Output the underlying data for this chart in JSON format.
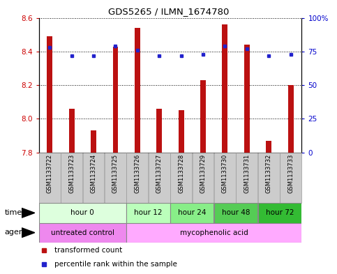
{
  "title": "GDS5265 / ILMN_1674780",
  "samples": [
    "GSM1133722",
    "GSM1133723",
    "GSM1133724",
    "GSM1133725",
    "GSM1133726",
    "GSM1133727",
    "GSM1133728",
    "GSM1133729",
    "GSM1133730",
    "GSM1133731",
    "GSM1133732",
    "GSM1133733"
  ],
  "bar_values": [
    8.49,
    8.06,
    7.93,
    8.43,
    8.54,
    8.06,
    8.05,
    8.23,
    8.56,
    8.44,
    7.87,
    8.2
  ],
  "percentile_values": [
    78,
    72,
    72,
    79,
    76,
    72,
    72,
    73,
    79,
    77,
    72,
    73
  ],
  "bar_bottom": 7.8,
  "ylim_left": [
    7.8,
    8.6
  ],
  "ylim_right": [
    0,
    100
  ],
  "yticks_left": [
    7.8,
    8.0,
    8.2,
    8.4,
    8.6
  ],
  "yticks_right": [
    0,
    25,
    50,
    75,
    100
  ],
  "bar_color": "#bb1111",
  "percentile_color": "#2222cc",
  "time_groups": [
    {
      "label": "hour 0",
      "start": 0,
      "end": 4,
      "color": "#ddffdd"
    },
    {
      "label": "hour 12",
      "start": 4,
      "end": 6,
      "color": "#bbffbb"
    },
    {
      "label": "hour 24",
      "start": 6,
      "end": 8,
      "color": "#88ee88"
    },
    {
      "label": "hour 48",
      "start": 8,
      "end": 10,
      "color": "#55cc55"
    },
    {
      "label": "hour 72",
      "start": 10,
      "end": 12,
      "color": "#33bb33"
    }
  ],
  "agent_groups": [
    {
      "label": "untreated control",
      "start": 0,
      "end": 4,
      "color": "#ee88ee"
    },
    {
      "label": "mycophenolic acid",
      "start": 4,
      "end": 12,
      "color": "#ffaaff"
    }
  ],
  "legend_items": [
    {
      "label": "transformed count",
      "color": "#bb1111"
    },
    {
      "label": "percentile rank within the sample",
      "color": "#2222cc"
    }
  ],
  "bar_width": 0.25,
  "sample_bg_color": "#cccccc",
  "sample_border_color": "#999999",
  "left_tick_color": "#cc0000",
  "right_tick_color": "#0000cc"
}
